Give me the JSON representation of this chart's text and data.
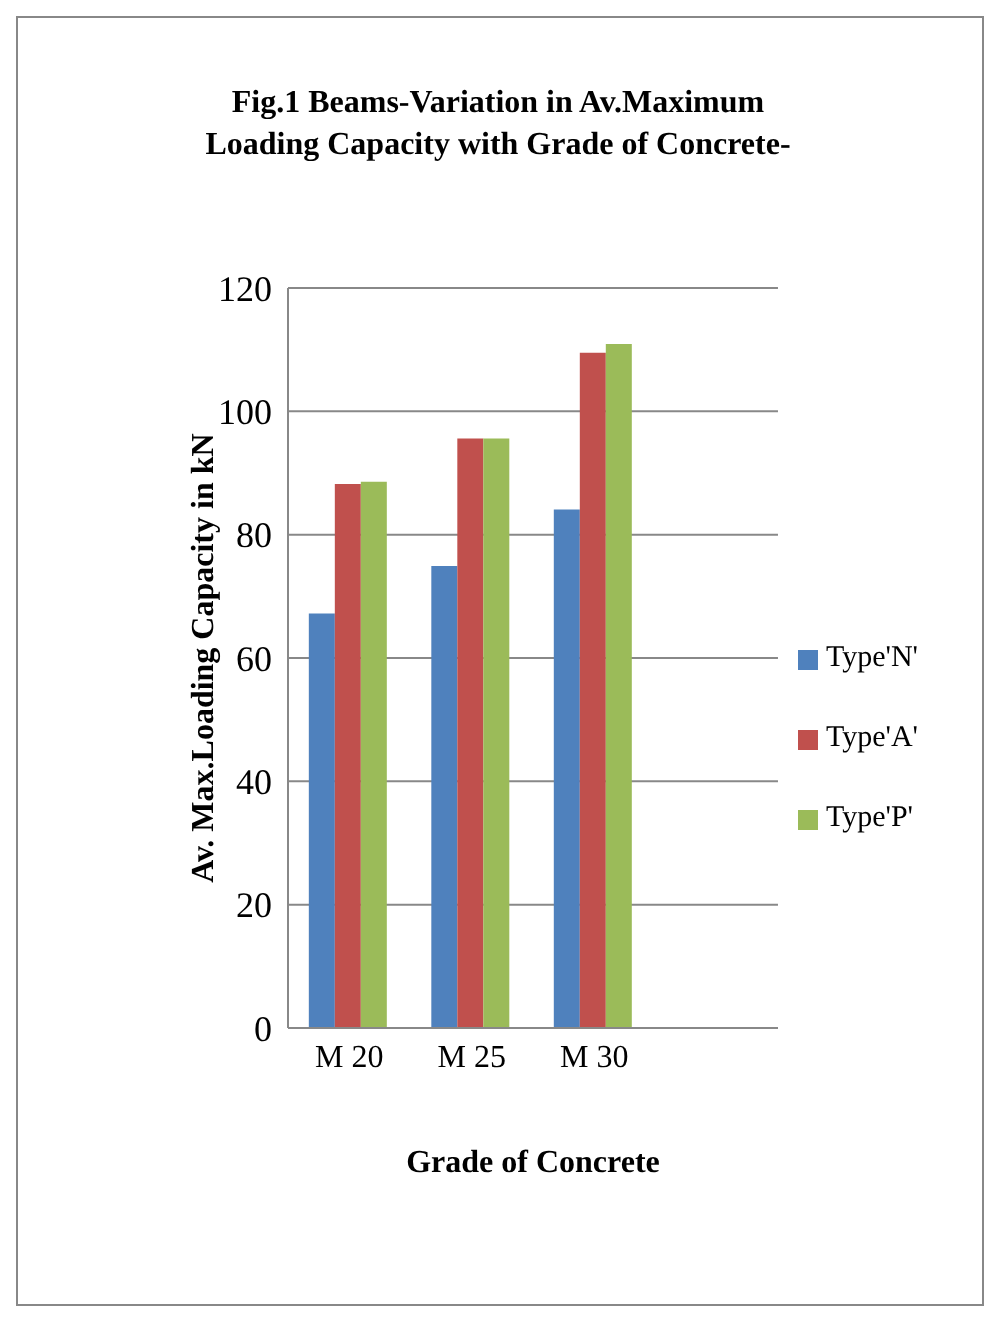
{
  "chart_data": {
    "type": "bar",
    "title": "Fig.1 Beams-Variation in Av.Maximum Loading Capacity with Grade of Concrete-",
    "xlabel": "Grade of Concrete",
    "ylabel": "Av. Max.Loading Capacity in kN",
    "categories": [
      "M 20",
      "M 25",
      "M 30",
      null
    ],
    "series": [
      {
        "name": "Type'N'",
        "color": "#4f81bd",
        "values": [
          67.2,
          74.9,
          84.1,
          null
        ]
      },
      {
        "name": "Type'A'",
        "color": "#c0504d",
        "values": [
          88.2,
          95.6,
          109.5,
          null
        ]
      },
      {
        "name": "Type'P'",
        "color": "#9bbb59",
        "values": [
          88.6,
          95.6,
          110.9,
          null
        ]
      }
    ],
    "ylim": [
      0,
      120
    ],
    "yticks": [
      0,
      20,
      40,
      60,
      80,
      100,
      120
    ],
    "grid": "y",
    "legend": "right"
  }
}
